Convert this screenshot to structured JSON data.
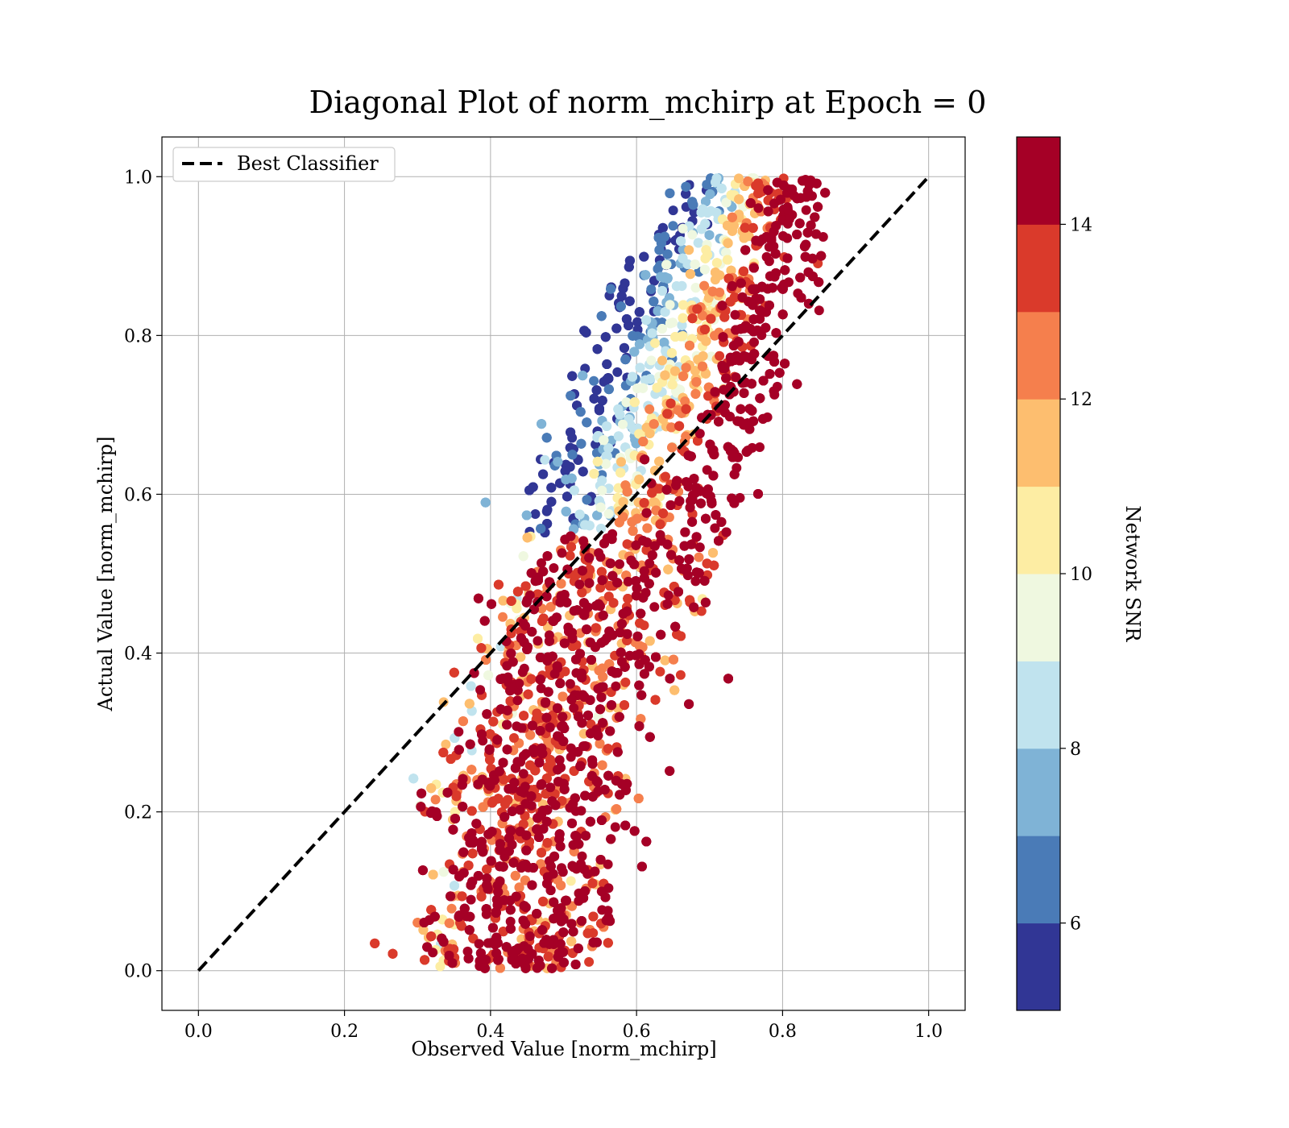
{
  "chart_data": {
    "type": "scatter",
    "title": "Diagonal Plot of norm_mchirp at Epoch = 0",
    "xlabel": "Observed Value [norm_mchirp]",
    "ylabel": "Actual Value [norm_mchirp]",
    "xlim": [
      -0.05,
      1.05
    ],
    "ylim": [
      -0.05,
      1.05
    ],
    "x_ticks": [
      "0.0",
      "0.2",
      "0.4",
      "0.6",
      "0.8",
      "1.0"
    ],
    "y_ticks": [
      "0.0",
      "0.2",
      "0.4",
      "0.6",
      "0.8",
      "1.0"
    ],
    "grid": true,
    "legend": {
      "placement": "top-left",
      "entries": [
        "Best Classifier"
      ]
    },
    "reference_line": {
      "name": "Best Classifier",
      "x": [
        0.0,
        1.0
      ],
      "y": [
        0.0,
        1.0
      ],
      "style": "dashed",
      "color": "#000000"
    },
    "colorbar": {
      "label": "Network SNR",
      "range": [
        5,
        15
      ],
      "ticks": [
        "6",
        "8",
        "10",
        "12",
        "14"
      ],
      "colors": [
        "#313695",
        "#4a7bb7",
        "#7fb3d6",
        "#c0e3ee",
        "#eff8e0",
        "#fdeda3",
        "#fdbe6f",
        "#f57f4d",
        "#da3a2b",
        "#a50026"
      ]
    },
    "points_summary": {
      "approx_count": 20000,
      "x_range": [
        0.22,
        0.86
      ],
      "y_range": [
        0.0,
        1.0
      ],
      "trend": "x rises from about 0.35 at y=0 to about 0.75 at y=1; low SNR points cluster at upper-left, high SNR near diagonal",
      "color_by": "Network SNR"
    }
  }
}
